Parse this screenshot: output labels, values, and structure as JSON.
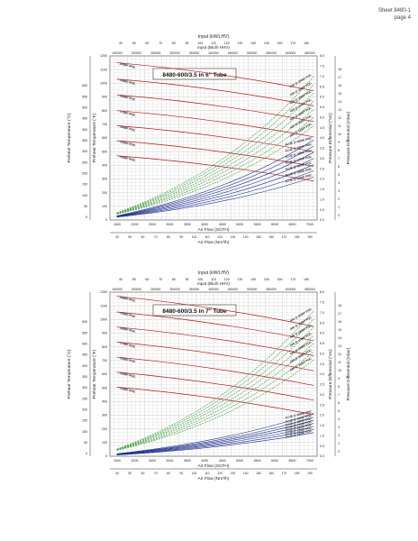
{
  "header": {
    "sheet": "Sheet 8480-1",
    "page": "page 4"
  },
  "colors": {
    "red": "#b4161b",
    "green": "#3a9a3a",
    "blue": "#1e2f8c",
    "grid": "#c8c8c8",
    "axis": "#333333"
  },
  "chart_data": [
    {
      "type": "line",
      "title": "8480-600/3.5 in 6\" Tube",
      "top_axis_title": "Input (kW/LHV)",
      "top_axis_ticks": [
        "40",
        "50",
        "60",
        "70",
        "80",
        "90",
        "100",
        "110",
        "120",
        "130",
        "140",
        "150",
        "160",
        "170",
        "180"
      ],
      "top2_axis_title": "Input (Btu/h HHV)",
      "top2_axis_ticks": [
        "150000",
        "200000",
        "250000",
        "300000",
        "350000",
        "400000",
        "450000",
        "500000",
        "550000",
        "600000",
        "650000"
      ],
      "bottom_axis_title": "Air Flow (SCFH)",
      "bottom_axis_ticks": [
        "1500",
        "2000",
        "2500",
        "3000",
        "3500",
        "4000",
        "4500",
        "5000",
        "5500",
        "6000",
        "6500",
        "7000"
      ],
      "bottom2_axis_title": "Air Flow (Nm³/h)",
      "bottom2_axis_ticks": [
        "40",
        "50",
        "60",
        "70",
        "80",
        "90",
        "100",
        "110",
        "120",
        "130",
        "140",
        "150",
        "160",
        "170",
        "180",
        "190"
      ],
      "left_outer_axis_title": "Preheat Temperature (°C)",
      "left_outer_ticks": [
        "0",
        "50",
        "100",
        "150",
        "200",
        "250",
        "300",
        "350",
        "400",
        "450",
        "500",
        "550",
        "600"
      ],
      "left_inner_axis_title": "Preheat Temperature (°F)",
      "left_inner_ticks": [
        "0",
        "100",
        "200",
        "300",
        "400",
        "500",
        "600",
        "700",
        "800",
        "900",
        "1000",
        "1100",
        "1200"
      ],
      "right_inner_axis_title": "Pressure Differential (\"wc)",
      "right_inner_ticks": [
        "0.0",
        "0.5",
        "1.0",
        "1.5",
        "2.0",
        "2.5",
        "3.0",
        "3.5",
        "4.0",
        "4.5",
        "5.0",
        "5.5",
        "6.0",
        "6.5",
        "7.0",
        "7.5",
        "8.0"
      ],
      "right_outer_axis_title": "Pressure Differential (mbar)",
      "right_outer_ticks": [
        "0",
        "1",
        "2",
        "3",
        "4",
        "5",
        "6",
        "7",
        "8",
        "9",
        "10",
        "11",
        "12",
        "13",
        "14",
        "15",
        "16",
        "17",
        "18"
      ],
      "xlim": [
        1200,
        7200
      ],
      "ylim_F": [
        0,
        1200
      ],
      "ylim_wc": [
        0,
        8
      ],
      "series_red": [
        {
          "name": "2000F POC",
          "values": [
            1150,
            1050,
            945
          ]
        },
        {
          "name": "1900F POC",
          "values": [
            1030,
            935,
            835
          ]
        },
        {
          "name": "1800F POC",
          "values": [
            915,
            820,
            720
          ]
        },
        {
          "name": "1700F POC",
          "values": [
            800,
            705,
            608
          ]
        },
        {
          "name": "1600F POC",
          "values": [
            690,
            595,
            500
          ]
        },
        {
          "name": "1500F POC",
          "values": [
            580,
            485,
            392
          ]
        },
        {
          "name": "1400F POC",
          "values": [
            470,
            378,
            285
          ]
        }
      ],
      "series_green": [
        {
          "name": "AIR @ 2000F POC",
          "values": [
            0.35,
            7.0
          ]
        },
        {
          "name": "AIR @ 1900F POC",
          "values": [
            0.34,
            6.6
          ]
        },
        {
          "name": "AIR @ 1800F POC",
          "values": [
            0.33,
            6.2
          ]
        },
        {
          "name": "AIR @ 1700F POC",
          "values": [
            0.32,
            5.8
          ]
        },
        {
          "name": "AIR @ 1600F POC",
          "values": [
            0.31,
            5.4
          ]
        },
        {
          "name": "AIR @ 1500F POC",
          "values": [
            0.3,
            5.0
          ]
        },
        {
          "name": "AIR @ 1400F POC",
          "values": [
            0.29,
            4.6
          ]
        }
      ],
      "series_blue": [
        {
          "name": "FLUE @ 2000F POC",
          "values": [
            0.2,
            3.9
          ]
        },
        {
          "name": "FLUE @ 1900F POC",
          "values": [
            0.19,
            3.6
          ]
        },
        {
          "name": "FLUE @ 1800F POC",
          "values": [
            0.18,
            3.3
          ]
        },
        {
          "name": "FLUE @ 1700F POC",
          "values": [
            0.17,
            3.0
          ]
        },
        {
          "name": "FLUE @ 1600F POC",
          "values": [
            0.16,
            2.7
          ]
        },
        {
          "name": "FLUE @ 1500F POC",
          "values": [
            0.15,
            2.4
          ]
        },
        {
          "name": "FLUE @ 1400F POC",
          "values": [
            0.14,
            2.1
          ]
        }
      ]
    },
    {
      "type": "line",
      "title": "8480-600/3.5 in 7\" Tube",
      "top_axis_title": "Input (kW/LHV)",
      "top_axis_ticks": [
        "40",
        "50",
        "60",
        "70",
        "80",
        "90",
        "100",
        "110",
        "120",
        "130",
        "140",
        "150",
        "160",
        "170",
        "180"
      ],
      "top2_axis_title": "Input (Btu/h HHV)",
      "top2_axis_ticks": [
        "150000",
        "200000",
        "250000",
        "300000",
        "350000",
        "400000",
        "450000",
        "500000",
        "550000",
        "600000",
        "650000"
      ],
      "bottom_axis_title": "Air Flow (SCFH)",
      "bottom_axis_ticks": [
        "1500",
        "2000",
        "2500",
        "3000",
        "3500",
        "4000",
        "4500",
        "5000",
        "5500",
        "6000",
        "6500",
        "7000"
      ],
      "bottom2_axis_title": "Air Flow (Nm³/h)",
      "bottom2_axis_ticks": [
        "40",
        "50",
        "60",
        "70",
        "80",
        "90",
        "100",
        "110",
        "120",
        "130",
        "140",
        "150",
        "160",
        "170",
        "180",
        "190"
      ],
      "left_outer_axis_title": "Preheat Temperature (°C)",
      "left_outer_ticks": [
        "0",
        "50",
        "100",
        "150",
        "200",
        "250",
        "300",
        "350",
        "400",
        "450",
        "500",
        "550",
        "600"
      ],
      "left_inner_axis_title": "Preheat Temperature (°F)",
      "left_inner_ticks": [
        "0",
        "100",
        "200",
        "300",
        "400",
        "500",
        "600",
        "700",
        "800",
        "900",
        "1000",
        "1100",
        "1200"
      ],
      "right_inner_axis_title": "Pressure Differential (\"wc)",
      "right_inner_ticks": [
        "0.0",
        "0.5",
        "1.0",
        "1.5",
        "2.0",
        "2.5",
        "3.0",
        "3.5",
        "4.0",
        "4.5",
        "5.0",
        "5.5",
        "6.0",
        "6.5",
        "7.0",
        "7.5",
        "8.0"
      ],
      "right_outer_axis_title": "Pressure Differential (mbar)",
      "right_outer_ticks": [
        "0",
        "1",
        "2",
        "3",
        "4",
        "5",
        "6",
        "7",
        "8",
        "9",
        "10",
        "11",
        "12",
        "13",
        "14",
        "15",
        "16",
        "17",
        "18"
      ],
      "xlim": [
        1200,
        7200
      ],
      "ylim_F": [
        0,
        1200
      ],
      "ylim_wc": [
        0,
        8
      ],
      "series_red": [
        {
          "name": "2000F POC",
          "values": [
            1170,
            1060,
            950
          ]
        },
        {
          "name": "1900F POC",
          "values": [
            1055,
            950,
            845
          ]
        },
        {
          "name": "1800F POC",
          "values": [
            945,
            840,
            735
          ]
        },
        {
          "name": "1700F POC",
          "values": [
            835,
            730,
            625
          ]
        },
        {
          "name": "1600F POC",
          "values": [
            725,
            620,
            518
          ]
        },
        {
          "name": "1500F POC",
          "values": [
            615,
            512,
            410
          ]
        },
        {
          "name": "1400F POC",
          "values": [
            505,
            405,
            305
          ]
        }
      ],
      "series_green": [
        {
          "name": "AIR @ 2000F POC",
          "values": [
            0.35,
            7.1
          ]
        },
        {
          "name": "AIR @ 1900F POC",
          "values": [
            0.34,
            6.7
          ]
        },
        {
          "name": "AIR @ 1800F POC",
          "values": [
            0.33,
            6.3
          ]
        },
        {
          "name": "AIR @ 1700F POC",
          "values": [
            0.32,
            5.9
          ]
        },
        {
          "name": "AIR @ 1600F POC",
          "values": [
            0.31,
            5.5
          ]
        },
        {
          "name": "AIR @ 1500F POC",
          "values": [
            0.3,
            5.1
          ]
        },
        {
          "name": "AIR @ 1400F POC",
          "values": [
            0.29,
            4.7
          ]
        }
      ],
      "series_blue": [
        {
          "name": "FLUE @ 2000F POC",
          "values": [
            0.12,
            2.1
          ]
        },
        {
          "name": "FLUE @ 1900F POC",
          "values": [
            0.11,
            1.9
          ]
        },
        {
          "name": "FLUE @ 1800F POC",
          "values": [
            0.1,
            1.75
          ]
        },
        {
          "name": "FLUE @ 1700F POC",
          "values": [
            0.09,
            1.6
          ]
        },
        {
          "name": "FLUE @ 1600F POC",
          "values": [
            0.08,
            1.45
          ]
        },
        {
          "name": "FLUE @ 1500F POC",
          "values": [
            0.07,
            1.3
          ]
        },
        {
          "name": "FLUE @ 1400F POC",
          "values": [
            0.06,
            1.15
          ]
        }
      ]
    }
  ]
}
